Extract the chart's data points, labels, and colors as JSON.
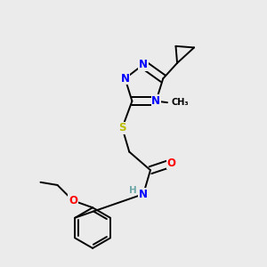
{
  "background_color": "#ebebeb",
  "atom_colors": {
    "N": "#0000ff",
    "O": "#ff0000",
    "S": "#bbbb00",
    "C": "#000000",
    "H": "#6fa8a8"
  },
  "bond_color": "#000000",
  "figsize": [
    3.0,
    3.0
  ],
  "dpi": 100
}
